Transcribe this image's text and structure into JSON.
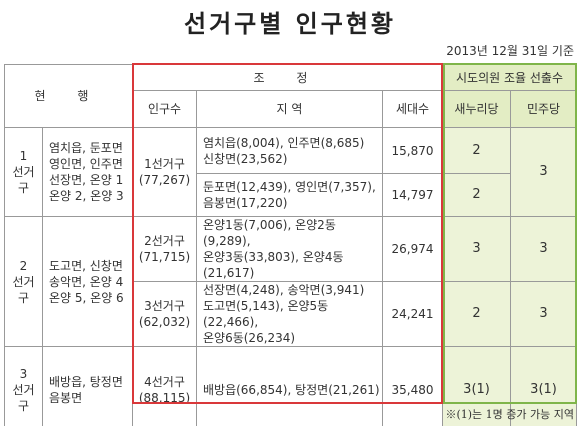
{
  "title": "선거구별 인구현황",
  "date_note": "2013년 12월 31일 기준",
  "table": {
    "headers": {
      "current": "현 행",
      "adjusted": "조 정",
      "council": "시도의원 조율 선출수",
      "population": "인구수",
      "region": "지 역",
      "households": "세대수",
      "saenuri": "새누리당",
      "minjoo": "민주당"
    },
    "rows": [
      {
        "current_name": "1\n선거구",
        "current_areas": "염치읍, 둔포면\n영인면, 인주면\n선장면, 온양 1\n온양 2, 온양 3",
        "district": "1선거구\n(77,267)",
        "region": "염치읍(8,004), 인주면(8,685)\n신창면(23,562)",
        "households": "15,870",
        "saenuri": "2",
        "minjoo": "3"
      },
      {
        "region": "둔포면(12,439), 영인면(7,357),\n음봉면(17,220)",
        "households": "14,797",
        "saenuri": "2"
      },
      {
        "current_name": "2\n선거구",
        "current_areas": "도고면, 신창면\n송악면, 온양 4\n온양 5, 온양 6",
        "district": "2선거구\n(71,715)",
        "region": "온양1동(7,006), 온양2동(9,289),\n온양3동(33,803), 온양4동(21,617)",
        "households": "26,974",
        "saenuri": "3",
        "minjoo": "3"
      },
      {
        "district": "3선거구\n(62,032)",
        "region": "선장면(4,248), 송악면(3,941)\n도고면(5,143), 온양5동(22,466),\n온양6동(26,234)",
        "households": "24,241",
        "saenuri": "2",
        "minjoo": "3"
      },
      {
        "current_name": "3\n선거구",
        "current_areas": "배방읍, 탕정면\n음봉면",
        "district": "4선거구\n(88,115)",
        "region": "배방읍(66,854), 탕정면(21,261)",
        "households": "35,480",
        "saenuri": "3(1)",
        "minjoo": "3(1)"
      }
    ]
  },
  "footnote": "※(1)는 1명 증가 가능 지역"
}
